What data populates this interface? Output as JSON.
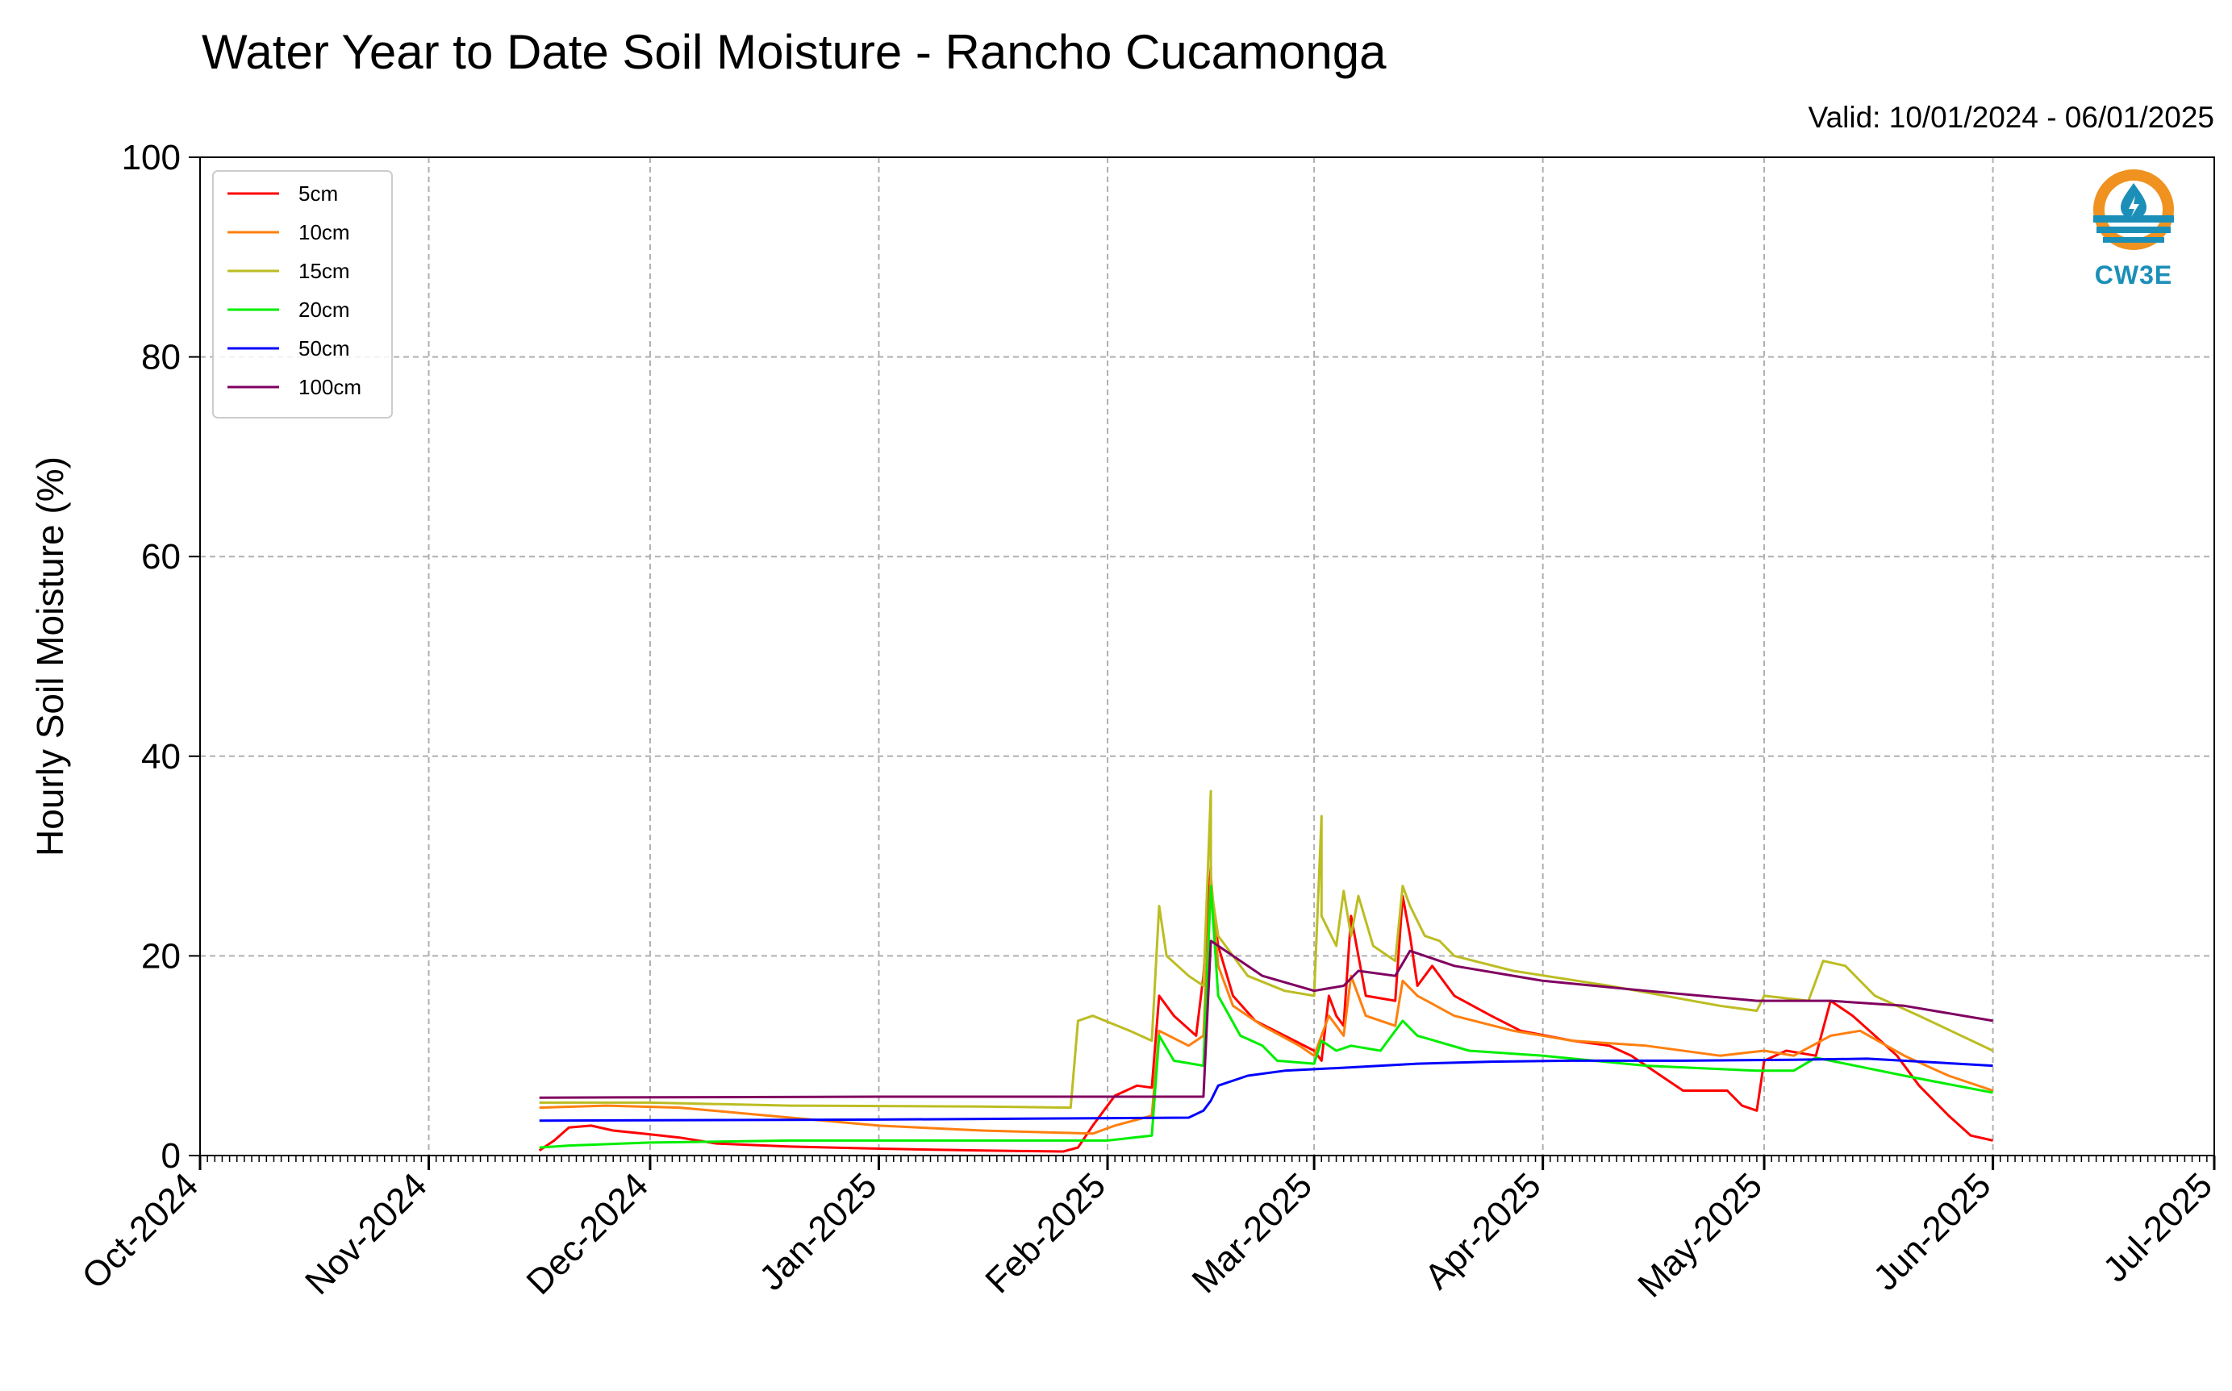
{
  "title": "Water Year to Date Soil Moisture - Rancho Cucamonga",
  "subtitle": "Valid: 10/01/2024 - 06/01/2025",
  "logo_text": "CW3E",
  "chart_data": {
    "type": "line",
    "title": "Water Year to Date Soil Moisture - Rancho Cucamonga",
    "xlabel": "",
    "ylabel": "Hourly Soil Moisture (%)",
    "xlim": [
      "2024-10-01",
      "2025-07-01"
    ],
    "ylim": [
      0,
      100
    ],
    "yticks": [
      0,
      20,
      40,
      60,
      80,
      100
    ],
    "xticks": [
      "2024-10-01",
      "2024-11-01",
      "2024-12-01",
      "2025-01-01",
      "2025-02-01",
      "2025-03-01",
      "2025-04-01",
      "2025-05-01",
      "2025-06-01",
      "2025-07-01"
    ],
    "xticklabels": [
      "Oct-2024",
      "Nov-2024",
      "Dec-2024",
      "Jan-2025",
      "Feb-2025",
      "Mar-2025",
      "Apr-2025",
      "May-2025",
      "Jun-2025",
      "Jul-2025"
    ],
    "grid": true,
    "legend_position": "upper-left",
    "series": [
      {
        "name": "5cm",
        "color": "#ff0000",
        "points": [
          [
            "2024-11-16",
            0.5
          ],
          [
            "2024-11-18",
            1.5
          ],
          [
            "2024-11-20",
            2.8
          ],
          [
            "2024-11-23",
            3.0
          ],
          [
            "2024-11-26",
            2.5
          ],
          [
            "2024-11-30",
            2.2
          ],
          [
            "2024-12-05",
            1.8
          ],
          [
            "2024-12-10",
            1.2
          ],
          [
            "2024-12-20",
            0.9
          ],
          [
            "2024-12-31",
            0.7
          ],
          [
            "2025-01-15",
            0.5
          ],
          [
            "2025-01-26",
            0.4
          ],
          [
            "2025-01-28",
            0.8
          ],
          [
            "2025-01-30",
            3.0
          ],
          [
            "2025-02-02",
            6.0
          ],
          [
            "2025-02-05",
            7.0
          ],
          [
            "2025-02-07",
            6.8
          ],
          [
            "2025-02-08",
            16.0
          ],
          [
            "2025-02-10",
            14.0
          ],
          [
            "2025-02-13",
            12.0
          ],
          [
            "2025-02-14",
            18.0
          ],
          [
            "2025-02-15",
            29.0
          ],
          [
            "2025-02-15",
            26.0
          ],
          [
            "2025-02-16",
            21.0
          ],
          [
            "2025-02-18",
            16.0
          ],
          [
            "2025-02-21",
            13.5
          ],
          [
            "2025-02-25",
            12.0
          ],
          [
            "2025-03-01",
            10.5
          ],
          [
            "2025-03-02",
            9.5
          ],
          [
            "2025-03-03",
            16.0
          ],
          [
            "2025-03-04",
            14.0
          ],
          [
            "2025-03-05",
            13.0
          ],
          [
            "2025-03-06",
            24.0
          ],
          [
            "2025-03-07",
            20.0
          ],
          [
            "2025-03-08",
            16.0
          ],
          [
            "2025-03-12",
            15.5
          ],
          [
            "2025-03-13",
            26.0
          ],
          [
            "2025-03-14",
            22.0
          ],
          [
            "2025-03-15",
            17.0
          ],
          [
            "2025-03-17",
            19.0
          ],
          [
            "2025-03-20",
            16.0
          ],
          [
            "2025-03-25",
            14.0
          ],
          [
            "2025-03-29",
            12.5
          ],
          [
            "2025-04-05",
            11.5
          ],
          [
            "2025-04-10",
            11.0
          ],
          [
            "2025-04-13",
            10.0
          ],
          [
            "2025-04-17",
            8.0
          ],
          [
            "2025-04-20",
            6.5
          ],
          [
            "2025-04-26",
            6.5
          ],
          [
            "2025-04-28",
            5.0
          ],
          [
            "2025-04-30",
            4.5
          ],
          [
            "2025-05-01",
            9.5
          ],
          [
            "2025-05-04",
            10.5
          ],
          [
            "2025-05-08",
            10.0
          ],
          [
            "2025-05-10",
            15.5
          ],
          [
            "2025-05-13",
            14.0
          ],
          [
            "2025-05-16",
            12.0
          ],
          [
            "2025-05-19",
            10.0
          ],
          [
            "2025-05-22",
            7.0
          ],
          [
            "2025-05-26",
            4.0
          ],
          [
            "2025-05-29",
            2.0
          ],
          [
            "2025-06-01",
            1.5
          ]
        ]
      },
      {
        "name": "10cm",
        "color": "#ff7f0e",
        "points": [
          [
            "2024-11-16",
            4.8
          ],
          [
            "2024-11-25",
            5.0
          ],
          [
            "2024-12-05",
            4.8
          ],
          [
            "2024-12-20",
            3.8
          ],
          [
            "2025-01-01",
            3.0
          ],
          [
            "2025-01-15",
            2.5
          ],
          [
            "2025-01-30",
            2.2
          ],
          [
            "2025-02-02",
            3.0
          ],
          [
            "2025-02-07",
            4.0
          ],
          [
            "2025-02-08",
            12.5
          ],
          [
            "2025-02-12",
            11.0
          ],
          [
            "2025-02-14",
            12.0
          ],
          [
            "2025-02-15",
            28.0
          ],
          [
            "2025-02-16",
            19.0
          ],
          [
            "2025-02-18",
            15.0
          ],
          [
            "2025-02-22",
            13.0
          ],
          [
            "2025-02-27",
            11.0
          ],
          [
            "2025-03-01",
            10.0
          ],
          [
            "2025-03-03",
            14.0
          ],
          [
            "2025-03-05",
            12.0
          ],
          [
            "2025-03-06",
            18.0
          ],
          [
            "2025-03-08",
            14.0
          ],
          [
            "2025-03-12",
            13.0
          ],
          [
            "2025-03-13",
            17.5
          ],
          [
            "2025-03-15",
            16.0
          ],
          [
            "2025-03-20",
            14.0
          ],
          [
            "2025-03-28",
            12.5
          ],
          [
            "2025-04-05",
            11.5
          ],
          [
            "2025-04-15",
            11.0
          ],
          [
            "2025-04-25",
            10.0
          ],
          [
            "2025-05-01",
            10.5
          ],
          [
            "2025-05-05",
            10.0
          ],
          [
            "2025-05-10",
            12.0
          ],
          [
            "2025-05-14",
            12.5
          ],
          [
            "2025-05-20",
            10.0
          ],
          [
            "2025-05-26",
            8.0
          ],
          [
            "2025-06-01",
            6.5
          ]
        ]
      },
      {
        "name": "15cm",
        "color": "#bcbd22",
        "points": [
          [
            "2024-11-16",
            5.3
          ],
          [
            "2024-12-01",
            5.3
          ],
          [
            "2024-12-20",
            5.0
          ],
          [
            "2025-01-15",
            4.9
          ],
          [
            "2025-01-27",
            4.8
          ],
          [
            "2025-01-28",
            13.5
          ],
          [
            "2025-01-30",
            14.0
          ],
          [
            "2025-02-04",
            12.5
          ],
          [
            "2025-02-07",
            11.5
          ],
          [
            "2025-02-08",
            25.0
          ],
          [
            "2025-02-09",
            20.0
          ],
          [
            "2025-02-12",
            18.0
          ],
          [
            "2025-02-14",
            17.0
          ],
          [
            "2025-02-15",
            36.5
          ],
          [
            "2025-02-15",
            27.0
          ],
          [
            "2025-02-16",
            22.0
          ],
          [
            "2025-02-20",
            18.0
          ],
          [
            "2025-02-25",
            16.5
          ],
          [
            "2025-03-01",
            16.0
          ],
          [
            "2025-03-02",
            34.0
          ],
          [
            "2025-03-02",
            24.0
          ],
          [
            "2025-03-04",
            21.0
          ],
          [
            "2025-03-05",
            26.5
          ],
          [
            "2025-03-06",
            22.0
          ],
          [
            "2025-03-07",
            26.0
          ],
          [
            "2025-03-09",
            21.0
          ],
          [
            "2025-03-12",
            19.5
          ],
          [
            "2025-03-13",
            27.0
          ],
          [
            "2025-03-14",
            25.0
          ],
          [
            "2025-03-16",
            22.0
          ],
          [
            "2025-03-18",
            21.5
          ],
          [
            "2025-03-20",
            20.0
          ],
          [
            "2025-03-28",
            18.5
          ],
          [
            "2025-04-10",
            17.0
          ],
          [
            "2025-04-25",
            15.0
          ],
          [
            "2025-04-30",
            14.5
          ],
          [
            "2025-05-01",
            16.0
          ],
          [
            "2025-05-07",
            15.5
          ],
          [
            "2025-05-09",
            19.5
          ],
          [
            "2025-05-12",
            19.0
          ],
          [
            "2025-05-16",
            16.0
          ],
          [
            "2025-05-22",
            14.0
          ],
          [
            "2025-06-01",
            10.5
          ]
        ]
      },
      {
        "name": "20cm",
        "color": "#00ee00",
        "points": [
          [
            "2024-11-16",
            0.8
          ],
          [
            "2024-11-20",
            1.0
          ],
          [
            "2024-12-01",
            1.3
          ],
          [
            "2024-12-20",
            1.5
          ],
          [
            "2025-01-15",
            1.5
          ],
          [
            "2025-02-01",
            1.5
          ],
          [
            "2025-02-07",
            2.0
          ],
          [
            "2025-02-08",
            12.0
          ],
          [
            "2025-02-10",
            9.5
          ],
          [
            "2025-02-14",
            9.0
          ],
          [
            "2025-02-15",
            27.0
          ],
          [
            "2025-02-16",
            16.0
          ],
          [
            "2025-02-19",
            12.0
          ],
          [
            "2025-02-22",
            11.0
          ],
          [
            "2025-02-24",
            9.5
          ],
          [
            "2025-03-01",
            9.2
          ],
          [
            "2025-03-02",
            11.5
          ],
          [
            "2025-03-04",
            10.5
          ],
          [
            "2025-03-06",
            11.0
          ],
          [
            "2025-03-10",
            10.5
          ],
          [
            "2025-03-13",
            13.5
          ],
          [
            "2025-03-15",
            12.0
          ],
          [
            "2025-03-22",
            10.5
          ],
          [
            "2025-04-01",
            10.0
          ],
          [
            "2025-04-15",
            9.0
          ],
          [
            "2025-04-30",
            8.5
          ],
          [
            "2025-05-05",
            8.5
          ],
          [
            "2025-05-08",
            9.8
          ],
          [
            "2025-05-10",
            9.5
          ],
          [
            "2025-05-20",
            8.0
          ],
          [
            "2025-06-01",
            6.3
          ]
        ]
      },
      {
        "name": "50cm",
        "color": "#0000ff",
        "points": [
          [
            "2024-11-16",
            3.5
          ],
          [
            "2025-01-01",
            3.6
          ],
          [
            "2025-02-12",
            3.8
          ],
          [
            "2025-02-14",
            4.5
          ],
          [
            "2025-02-15",
            5.5
          ],
          [
            "2025-02-16",
            7.0
          ],
          [
            "2025-02-20",
            8.0
          ],
          [
            "2025-02-25",
            8.5
          ],
          [
            "2025-03-05",
            8.8
          ],
          [
            "2025-03-15",
            9.2
          ],
          [
            "2025-03-25",
            9.4
          ],
          [
            "2025-04-05",
            9.5
          ],
          [
            "2025-04-20",
            9.5
          ],
          [
            "2025-05-05",
            9.6
          ],
          [
            "2025-05-15",
            9.7
          ],
          [
            "2025-06-01",
            9.0
          ]
        ]
      },
      {
        "name": "100cm",
        "color": "#800060",
        "points": [
          [
            "2024-11-16",
            5.8
          ],
          [
            "2025-01-01",
            5.9
          ],
          [
            "2025-02-14",
            5.9
          ],
          [
            "2025-02-15",
            21.5
          ],
          [
            "2025-02-17",
            20.5
          ],
          [
            "2025-02-22",
            18.0
          ],
          [
            "2025-03-01",
            16.5
          ],
          [
            "2025-03-05",
            17.0
          ],
          [
            "2025-03-07",
            18.5
          ],
          [
            "2025-03-12",
            18.0
          ],
          [
            "2025-03-14",
            20.5
          ],
          [
            "2025-03-20",
            19.0
          ],
          [
            "2025-04-01",
            17.5
          ],
          [
            "2025-04-15",
            16.5
          ],
          [
            "2025-04-30",
            15.5
          ],
          [
            "2025-05-10",
            15.5
          ],
          [
            "2025-05-20",
            15.0
          ],
          [
            "2025-06-01",
            13.5
          ]
        ]
      }
    ]
  }
}
